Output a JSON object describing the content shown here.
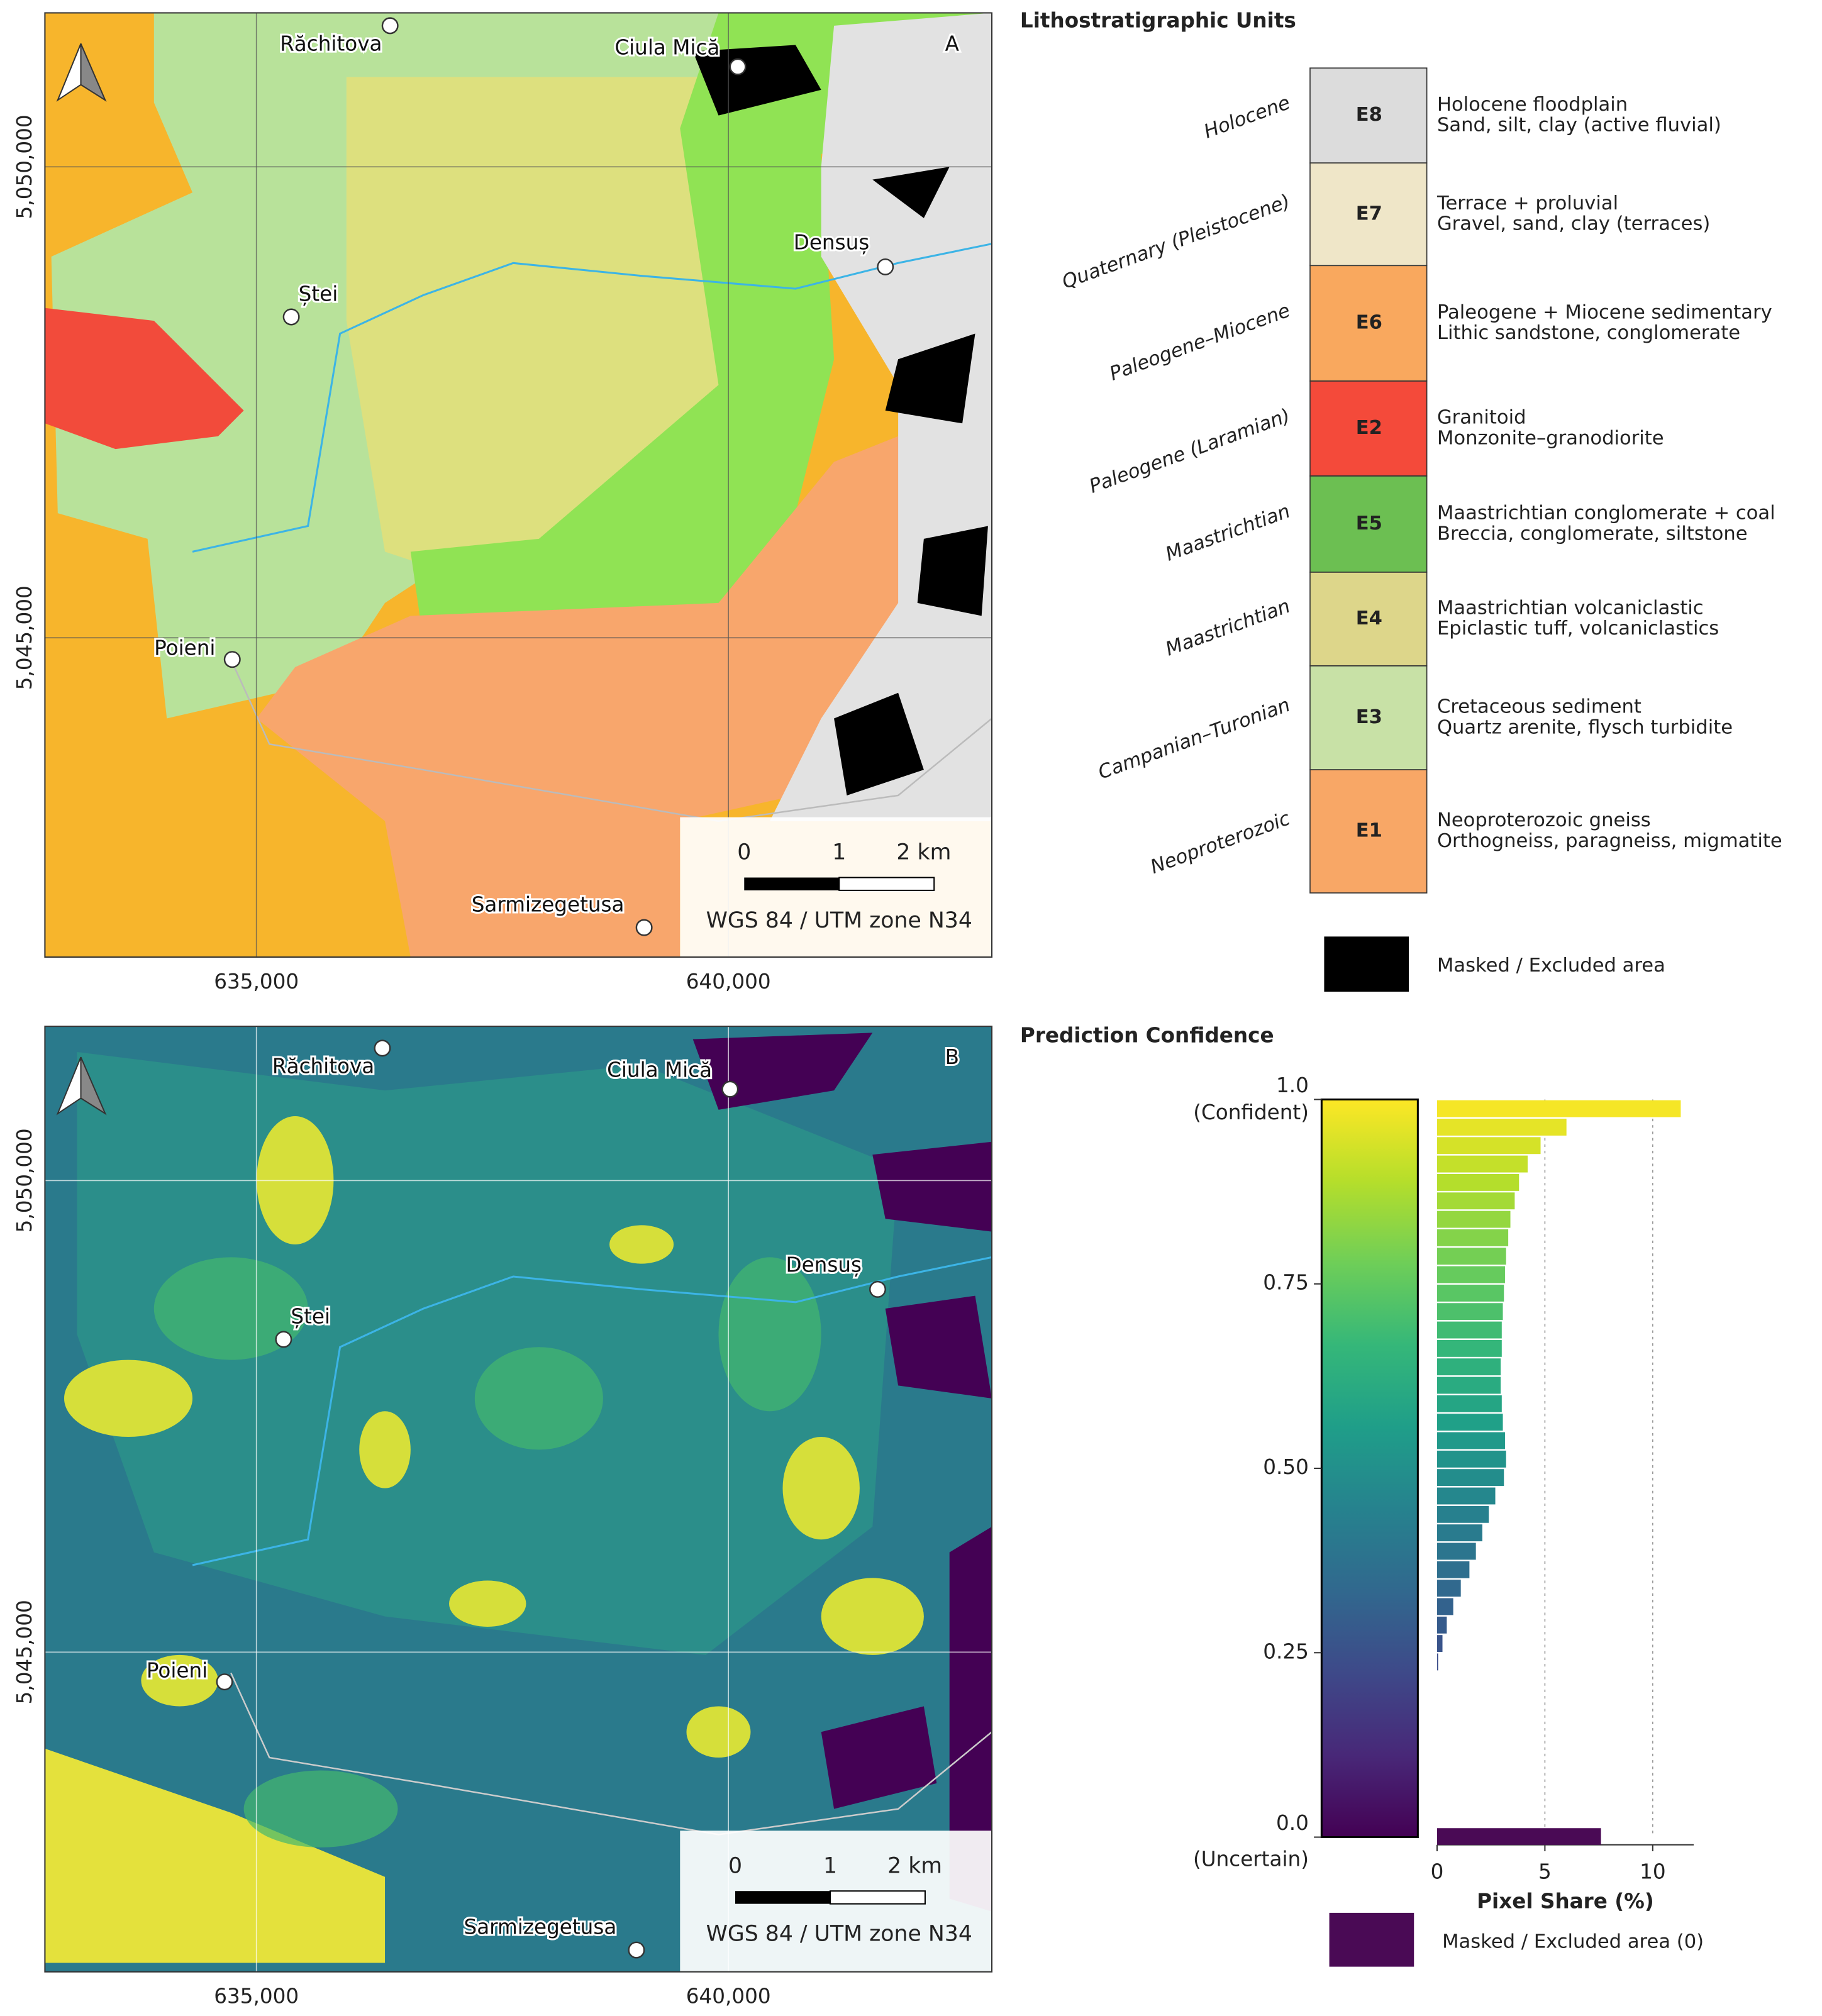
{
  "map": {
    "xlim": [
      632760,
      642790
    ],
    "ylim": [
      5041610,
      5051635
    ],
    "xticks": [
      {
        "value": 635000,
        "label": "635,000"
      },
      {
        "value": 640000,
        "label": "640,000"
      }
    ],
    "yticks": [
      {
        "value": 5045000,
        "label": "5,045,000"
      },
      {
        "value": 5050000,
        "label": "5,050,000"
      }
    ],
    "places": [
      "Răchitova",
      "Ciula Mică",
      "Densuș",
      "Ștei",
      "Poieni",
      "Sarmizegetusa"
    ],
    "scale_labels": [
      "0",
      "1",
      "2 km"
    ],
    "crs": "WGS 84 / UTM zone N34"
  },
  "panel_a": {
    "label": "A",
    "legend_title": "Lithostratigraphic Units",
    "units": [
      {
        "era": "Holocene",
        "code": "E8",
        "name": "Holocene floodplain",
        "description": "Sand, silt, clay (active fluvial)",
        "color": "#dcdcdc"
      },
      {
        "era": "Quaternary (Pleistocene)",
        "code": "E7",
        "name": "Terrace + proluvial",
        "description": "Gravel, sand, clay (terraces)",
        "color": "#efe6c8"
      },
      {
        "era": "Paleogene–Miocene",
        "code": "E6",
        "name": "Paleogene + Miocene sedimentary",
        "description": "Lithic sandstone, conglomerate",
        "color": "#f9a85e"
      },
      {
        "era": "Paleogene (Laramian)",
        "code": "E2",
        "name": "Granitoid",
        "description": "Monzonite–granodiorite",
        "color": "#f44a3a"
      },
      {
        "era": "Maastrichtian",
        "code": "E5",
        "name": "Maastrichtian conglomerate + coal",
        "description": "Breccia, conglomerate, siltstone",
        "color": "#6cbf52"
      },
      {
        "era": "Maastrichtian",
        "code": "E4",
        "name": "Maastrichtian volcaniclastic",
        "description": "Epiclastic tuff, volcaniclastics",
        "color": "#ddd68a"
      },
      {
        "era": "Campanian–Turonian",
        "code": "E3",
        "name": "Cretaceous sediment",
        "description": "Quartz arenite, flysch turbidite",
        "color": "#c8e1a6"
      },
      {
        "era": "Neoproterozoic",
        "code": "E1",
        "name": "Neoproterozoic gneiss",
        "description": "Orthogneiss, paragneiss, migmatite",
        "color": "#f8a766"
      }
    ],
    "masked_label": "Masked / Excluded area",
    "masked_color": "#000000"
  },
  "panel_b": {
    "label": "B",
    "legend_title": "Prediction Confidence",
    "colorbar": {
      "colors": [
        "#440154",
        "#482878",
        "#3e4989",
        "#31688e",
        "#26828e",
        "#1f9e89",
        "#35b779",
        "#6ece58",
        "#b5de2b",
        "#fde725"
      ],
      "ylim": [
        0,
        1
      ],
      "yticks": [
        {
          "value": 0,
          "label": "0.0"
        },
        0.25,
        {
          "value": 0.5,
          "label": "0.50"
        },
        0.75,
        {
          "value": 1,
          "label": "1.0"
        }
      ],
      "top_label": "(Confident)",
      "bottom_label": "(Uncertain)"
    },
    "masked_label": "Masked / Excluded area (0)",
    "masked_color": "#4a0a55"
  },
  "chart_data": {
    "type": "histogram",
    "xlabel": "Pixel Share (%)",
    "xlim": [
      0,
      11.9
    ],
    "xticks": [
      0,
      5,
      10
    ],
    "grid": true,
    "bins": [
      0,
      0.025,
      0.05,
      0.075,
      0.1,
      0.125,
      0.15,
      0.175,
      0.2,
      0.225,
      0.25,
      0.275,
      0.3,
      0.325,
      0.35,
      0.375,
      0.4,
      0.425,
      0.45,
      0.475,
      0.5,
      0.525,
      0.55,
      0.575,
      0.6,
      0.625,
      0.65,
      0.675,
      0.7,
      0.725,
      0.75,
      0.775,
      0.8,
      0.825,
      0.85,
      0.875,
      0.9,
      0.925,
      0.95,
      0.975,
      1
    ],
    "values": [
      0,
      0,
      0,
      0,
      0,
      0,
      0,
      0,
      0,
      0.05,
      0.25,
      0.45,
      0.75,
      1.1,
      1.5,
      1.8,
      2.1,
      2.4,
      2.7,
      3.1,
      3.2,
      3.15,
      3.05,
      3.0,
      2.95,
      2.95,
      3.0,
      3.0,
      3.05,
      3.1,
      3.15,
      3.2,
      3.3,
      3.4,
      3.6,
      3.8,
      4.2,
      4.8,
      6.0,
      11.3
    ],
    "masked_value": 7.6
  }
}
